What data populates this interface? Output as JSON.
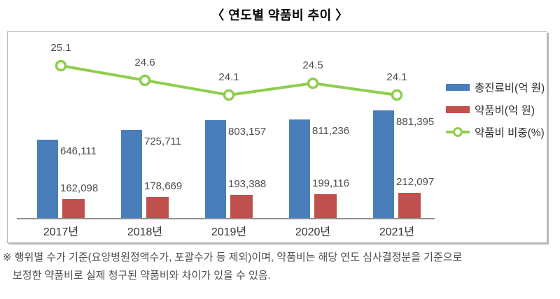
{
  "title": "〈 연도별 약품비 추이 〉",
  "footnote": {
    "line1": "※ 행위별 수가 기준(요양병원정액수가, 포괄수가 등 제외)이며, 약품비는 해당 연도 심사결정분을 기준으로",
    "line2": "보정한 약품비로 실제 청구된 약품비와 차이가 있을 수 있음."
  },
  "colors": {
    "total_bar": "#4a7ebb",
    "drug_bar": "#c0504d",
    "ratio_line": "#8fce4d",
    "axis": "#8f8f8f",
    "value_label": "#4d4d4d",
    "title_text": "#222222"
  },
  "legend": {
    "items": [
      {
        "name": "total",
        "type": "bar",
        "color": "#4a7ebb",
        "label": "총진료비(억 원)"
      },
      {
        "name": "drug",
        "type": "bar",
        "color": "#c0504d",
        "label": "약품비(억 원)"
      },
      {
        "name": "ratio",
        "type": "line-marker",
        "color": "#8fce4d",
        "label": "약품비 비중(%)"
      }
    ]
  },
  "chart_data": {
    "type": "bar",
    "subtype": "grouped-bars-with-line-overlay",
    "title": "연도별 약품비 추이",
    "categories": [
      "2017년",
      "2018년",
      "2019년",
      "2020년",
      "2021년"
    ],
    "series": [
      {
        "name": "총진료비(억 원)",
        "type": "bar",
        "color": "#4a7ebb",
        "values": [
          646111,
          725711,
          803157,
          811236,
          881395
        ]
      },
      {
        "name": "약품비(억 원)",
        "type": "bar",
        "color": "#c0504d",
        "values": [
          162098,
          178669,
          193388,
          199116,
          212097
        ]
      },
      {
        "name": "약품비 비중(%)",
        "type": "line",
        "color": "#8fce4d",
        "values": [
          25.1,
          24.6,
          24.1,
          24.5,
          24.1
        ]
      }
    ],
    "xlabel": "",
    "ylabel": "",
    "value_axis_visible": false,
    "grid": false,
    "data_labels": true,
    "legend_position": "right"
  }
}
